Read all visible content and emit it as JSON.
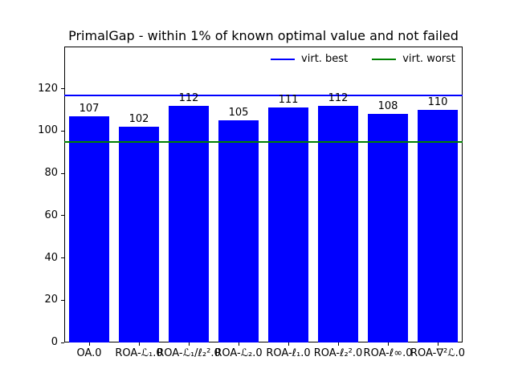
{
  "chart_data": {
    "type": "bar",
    "title": "PrimalGap - within 1% of known optimal value and not failed",
    "categories": [
      "OA.0",
      "ROA-ℒ₁.0",
      "ROA-ℒ₁/ℓ₂².0",
      "ROA-ℒ₂.0",
      "ROA-ℓ₁.0",
      "ROA-ℓ₂².0",
      "ROA-ℓ∞.0",
      "ROA-∇²ℒ.0"
    ],
    "values": [
      107,
      102,
      112,
      105,
      111,
      112,
      108,
      110
    ],
    "bar_color": "#0000ff",
    "bar_value_labels": [
      "107",
      "102",
      "112",
      "105",
      "111",
      "112",
      "108",
      "110"
    ],
    "hlines": [
      {
        "label": "virt. best",
        "value": 117,
        "color": "#0000ff"
      },
      {
        "label": "virt. worst",
        "value": 95,
        "color": "#008000"
      }
    ],
    "yticks": [
      0,
      20,
      40,
      60,
      80,
      100,
      120
    ],
    "ylim": [
      0,
      140
    ],
    "xlabel": "",
    "ylabel": "",
    "grid": false,
    "legend_position": "upper right, horizontal, frameless",
    "background_color": "#ffffff",
    "text_color": "#000000"
  }
}
